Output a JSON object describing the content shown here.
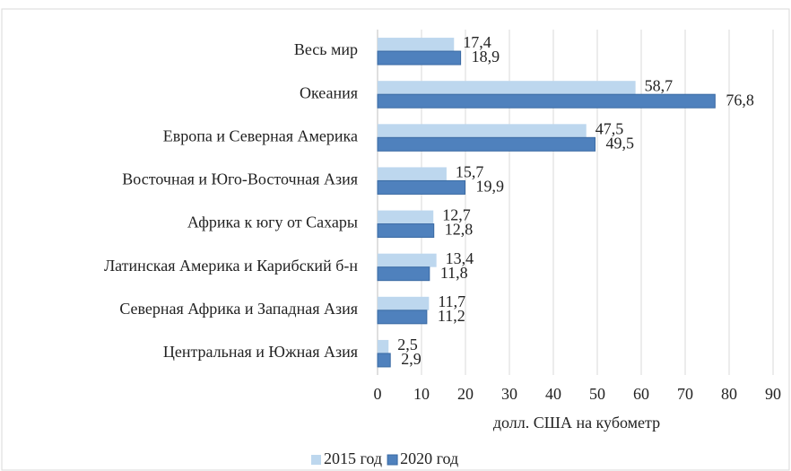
{
  "chart_data": {
    "type": "bar",
    "orientation": "horizontal",
    "categories": [
      "Весь мир",
      "Океания",
      "Европа и Северная Америка",
      "Восточная и Юго-Восточная Азия",
      "Африка к югу от Сахары",
      "Латинская Америка и Карибский б-н",
      "Северная Африка и Западная Азия",
      "Центральная и Южная Азия"
    ],
    "series": [
      {
        "name": "2015 год",
        "color": "#bdd7ee",
        "values": [
          17.4,
          58.7,
          47.5,
          15.7,
          12.7,
          13.4,
          11.7,
          2.5
        ],
        "value_labels": [
          "17,4",
          "58,7",
          "47,5",
          "15,7",
          "12,7",
          "13,4",
          "11,7",
          "2,5"
        ]
      },
      {
        "name": "2020 год",
        "color": "#4f81bd",
        "values": [
          18.9,
          76.8,
          49.5,
          19.9,
          12.8,
          11.8,
          11.2,
          2.9
        ],
        "value_labels": [
          "18,9",
          "76,8",
          "49,5",
          "19,9",
          "12,8",
          "11,8",
          "11,2",
          "2,9"
        ]
      }
    ],
    "xlabel": "долл. США на кубометр",
    "xlim": [
      0,
      90
    ],
    "xticks": [
      0,
      10,
      20,
      30,
      40,
      50,
      60,
      70,
      80,
      90
    ],
    "grid": true,
    "legend": "bottom"
  }
}
